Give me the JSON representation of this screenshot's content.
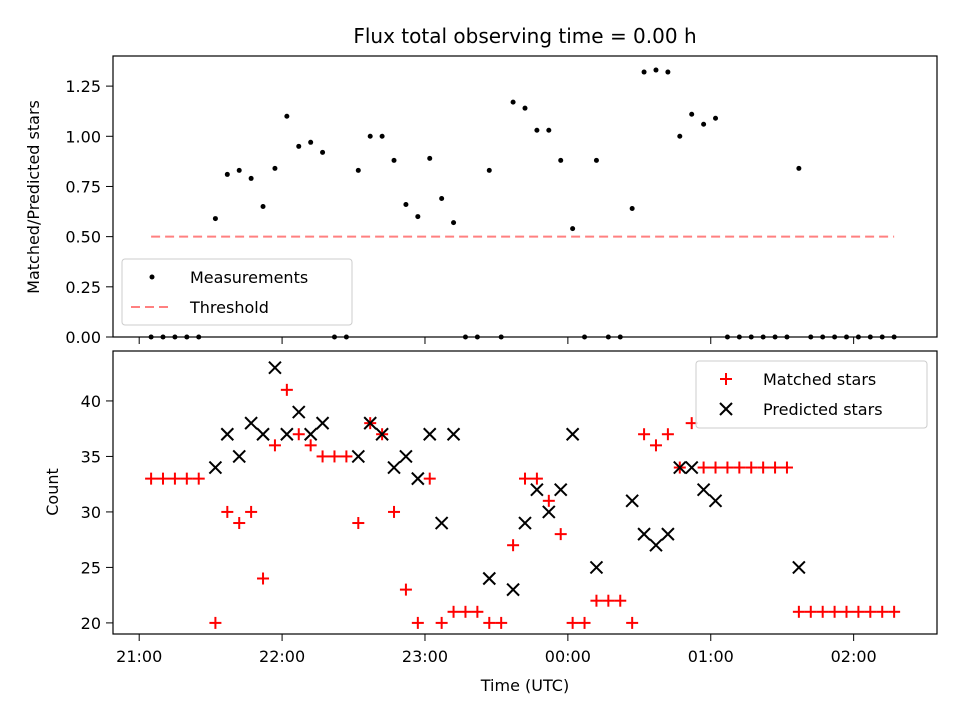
{
  "chart_data": [
    {
      "type": "scatter",
      "title": "Flux total observing time = 0.00 h",
      "xlabel": "",
      "ylabel": "Matched/Predicted stars",
      "xlim": [
        "20:49",
        "02:35"
      ],
      "ylim": [
        0,
        1.4
      ],
      "yticks": [
        0.0,
        0.25,
        0.5,
        0.75,
        1.0,
        1.25
      ],
      "ytick_labels": [
        "0.00",
        "0.25",
        "0.50",
        "0.75",
        "1.00",
        "1.25"
      ],
      "xticks": [
        "21:00",
        "22:00",
        "23:00",
        "00:00",
        "01:00",
        "02:00"
      ],
      "grid": false,
      "legend_position": "lower-left",
      "series": [
        {
          "name": "Measurements",
          "marker": "dot",
          "color": "#000000",
          "points": [
            [
              "21:05",
              0.0
            ],
            [
              "21:10",
              0.0
            ],
            [
              "21:15",
              0.0
            ],
            [
              "21:20",
              0.0
            ],
            [
              "21:25",
              0.0
            ],
            [
              "21:32",
              0.59
            ],
            [
              "21:37",
              0.81
            ],
            [
              "21:42",
              0.83
            ],
            [
              "21:47",
              0.79
            ],
            [
              "21:52",
              0.65
            ],
            [
              "21:57",
              0.84
            ],
            [
              "22:02",
              1.1
            ],
            [
              "22:07",
              0.95
            ],
            [
              "22:12",
              0.97
            ],
            [
              "22:17",
              0.92
            ],
            [
              "22:22",
              0.0
            ],
            [
              "22:27",
              0.0
            ],
            [
              "22:32",
              0.83
            ],
            [
              "22:37",
              1.0
            ],
            [
              "22:42",
              1.0
            ],
            [
              "22:47",
              0.88
            ],
            [
              "22:52",
              0.66
            ],
            [
              "22:57",
              0.6
            ],
            [
              "23:02",
              0.89
            ],
            [
              "23:07",
              0.69
            ],
            [
              "23:12",
              0.57
            ],
            [
              "23:17",
              0.0
            ],
            [
              "23:22",
              0.0
            ],
            [
              "23:27",
              0.83
            ],
            [
              "23:32",
              0.0
            ],
            [
              "23:37",
              1.17
            ],
            [
              "23:42",
              1.14
            ],
            [
              "23:47",
              1.03
            ],
            [
              "23:52",
              1.03
            ],
            [
              "23:57",
              0.88
            ],
            [
              "00:02",
              0.54
            ],
            [
              "00:07",
              0.0
            ],
            [
              "00:12",
              0.88
            ],
            [
              "00:17",
              0.0
            ],
            [
              "00:22",
              0.0
            ],
            [
              "00:27",
              0.64
            ],
            [
              "00:32",
              1.32
            ],
            [
              "00:37",
              1.33
            ],
            [
              "00:42",
              1.32
            ],
            [
              "00:47",
              1.0
            ],
            [
              "00:52",
              1.11
            ],
            [
              "00:57",
              1.06
            ],
            [
              "01:02",
              1.09
            ],
            [
              "01:07",
              0.0
            ],
            [
              "01:12",
              0.0
            ],
            [
              "01:17",
              0.0
            ],
            [
              "01:22",
              0.0
            ],
            [
              "01:27",
              0.0
            ],
            [
              "01:32",
              0.0
            ],
            [
              "01:37",
              0.84
            ],
            [
              "01:42",
              0.0
            ],
            [
              "01:47",
              0.0
            ],
            [
              "01:52",
              0.0
            ],
            [
              "01:57",
              0.0
            ],
            [
              "02:02",
              0.0
            ],
            [
              "02:07",
              0.0
            ],
            [
              "02:12",
              0.0
            ],
            [
              "02:17",
              0.0
            ]
          ]
        },
        {
          "name": "Threshold",
          "style": "dashed-line",
          "color": "#ff8080",
          "points": [
            [
              "21:05",
              0.5
            ],
            [
              "02:17",
              0.5
            ]
          ]
        }
      ]
    },
    {
      "type": "scatter",
      "title": "",
      "xlabel": "Time (UTC)",
      "ylabel": "Count",
      "xlim": [
        "20:49",
        "02:35"
      ],
      "ylim": [
        19,
        44.5
      ],
      "yticks": [
        20,
        25,
        30,
        35,
        40
      ],
      "ytick_labels": [
        "20",
        "25",
        "30",
        "35",
        "40"
      ],
      "xticks": [
        "21:00",
        "22:00",
        "23:00",
        "00:00",
        "01:00",
        "02:00"
      ],
      "grid": false,
      "legend_position": "upper-right",
      "series": [
        {
          "name": "Matched stars",
          "marker": "plus",
          "color": "#ff0000",
          "points": [
            [
              "21:05",
              33
            ],
            [
              "21:10",
              33
            ],
            [
              "21:15",
              33
            ],
            [
              "21:20",
              33
            ],
            [
              "21:25",
              33
            ],
            [
              "21:32",
              20
            ],
            [
              "21:37",
              30
            ],
            [
              "21:42",
              29
            ],
            [
              "21:47",
              30
            ],
            [
              "21:52",
              24
            ],
            [
              "21:57",
              36
            ],
            [
              "22:02",
              41
            ],
            [
              "22:07",
              37
            ],
            [
              "22:12",
              36
            ],
            [
              "22:17",
              35
            ],
            [
              "22:22",
              35
            ],
            [
              "22:27",
              35
            ],
            [
              "22:32",
              29
            ],
            [
              "22:37",
              38
            ],
            [
              "22:42",
              37
            ],
            [
              "22:47",
              30
            ],
            [
              "22:52",
              23
            ],
            [
              "22:57",
              20
            ],
            [
              "23:02",
              33
            ],
            [
              "23:07",
              20
            ],
            [
              "23:12",
              21
            ],
            [
              "23:17",
              21
            ],
            [
              "23:22",
              21
            ],
            [
              "23:27",
              20
            ],
            [
              "23:32",
              20
            ],
            [
              "23:37",
              27
            ],
            [
              "23:42",
              33
            ],
            [
              "23:47",
              33
            ],
            [
              "23:52",
              31
            ],
            [
              "23:57",
              28
            ],
            [
              "00:02",
              20
            ],
            [
              "00:07",
              20
            ],
            [
              "00:12",
              22
            ],
            [
              "00:17",
              22
            ],
            [
              "00:22",
              22
            ],
            [
              "00:27",
              20
            ],
            [
              "00:32",
              37
            ],
            [
              "00:37",
              36
            ],
            [
              "00:42",
              37
            ],
            [
              "00:47",
              34
            ],
            [
              "00:52",
              38
            ],
            [
              "00:57",
              34
            ],
            [
              "01:02",
              34
            ],
            [
              "01:07",
              34
            ],
            [
              "01:12",
              34
            ],
            [
              "01:17",
              34
            ],
            [
              "01:22",
              34
            ],
            [
              "01:27",
              34
            ],
            [
              "01:32",
              34
            ],
            [
              "01:37",
              21
            ],
            [
              "01:42",
              21
            ],
            [
              "01:47",
              21
            ],
            [
              "01:52",
              21
            ],
            [
              "01:57",
              21
            ],
            [
              "02:02",
              21
            ],
            [
              "02:07",
              21
            ],
            [
              "02:12",
              21
            ],
            [
              "02:17",
              21
            ]
          ]
        },
        {
          "name": "Predicted stars",
          "marker": "x",
          "color": "#000000",
          "points": [
            [
              "21:32",
              34
            ],
            [
              "21:37",
              37
            ],
            [
              "21:42",
              35
            ],
            [
              "21:47",
              38
            ],
            [
              "21:52",
              37
            ],
            [
              "21:57",
              43
            ],
            [
              "22:02",
              37
            ],
            [
              "22:07",
              39
            ],
            [
              "22:12",
              37
            ],
            [
              "22:17",
              38
            ],
            [
              "22:32",
              35
            ],
            [
              "22:37",
              38
            ],
            [
              "22:42",
              37
            ],
            [
              "22:47",
              34
            ],
            [
              "22:52",
              35
            ],
            [
              "22:57",
              33
            ],
            [
              "23:02",
              37
            ],
            [
              "23:07",
              29
            ],
            [
              "23:12",
              37
            ],
            [
              "23:27",
              24
            ],
            [
              "23:37",
              23
            ],
            [
              "23:42",
              29
            ],
            [
              "23:47",
              32
            ],
            [
              "23:52",
              30
            ],
            [
              "23:57",
              32
            ],
            [
              "00:02",
              37
            ],
            [
              "00:12",
              25
            ],
            [
              "00:27",
              31
            ],
            [
              "00:32",
              28
            ],
            [
              "00:37",
              27
            ],
            [
              "00:42",
              28
            ],
            [
              "00:47",
              34
            ],
            [
              "00:52",
              34
            ],
            [
              "00:57",
              32
            ],
            [
              "01:02",
              31
            ],
            [
              "01:37",
              25
            ]
          ]
        }
      ]
    }
  ]
}
